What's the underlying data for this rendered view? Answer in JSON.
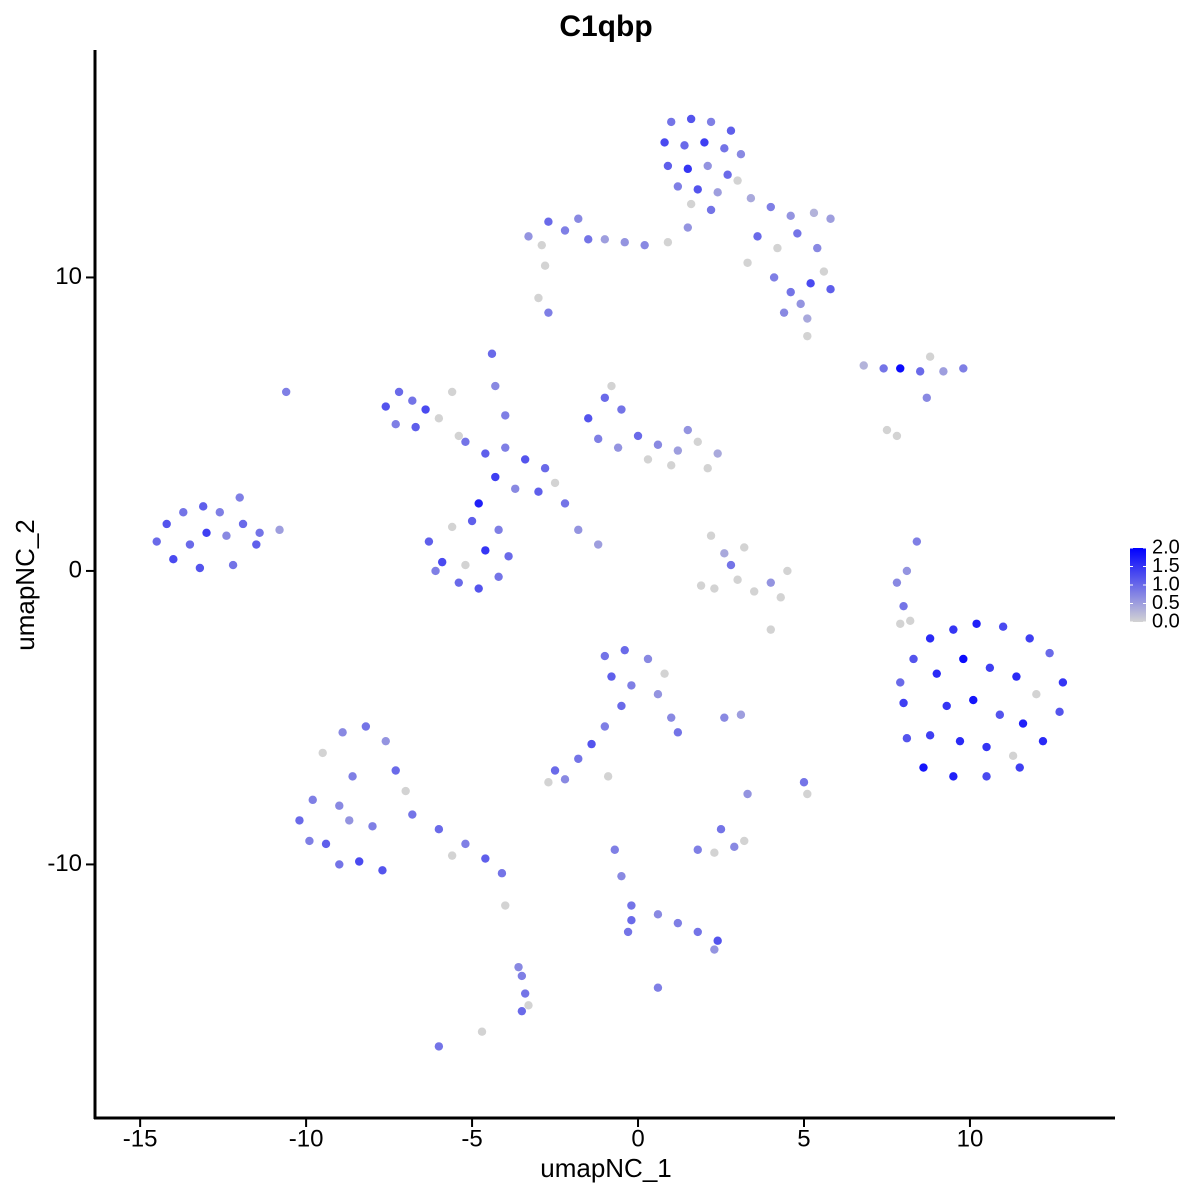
{
  "chart_data": {
    "type": "scatter",
    "title": "C1qbp",
    "x_label": "umapNC_1",
    "y_label": "umapNC_2",
    "xlim": [
      -16.36,
      14.37
    ],
    "ylim": [
      -18.64,
      17.75
    ],
    "xticks": [
      -15,
      -10,
      -5,
      0,
      5,
      10
    ],
    "yticks": [
      -10,
      0,
      10
    ],
    "colors": [
      "#d3d3d3",
      "#0000ff"
    ],
    "color_lim": [
      0,
      2
    ],
    "color_ticks": [
      {
        "value": 0,
        "label": "0.0"
      },
      {
        "value": 0.5,
        "label": "0.5"
      },
      {
        "value": 1,
        "label": "1.0"
      },
      {
        "value": 1.5,
        "label": "1.5"
      },
      {
        "value": 2,
        "label": "2.0"
      }
    ],
    "x": [
      1.0,
      1.6,
      2.2,
      2.8,
      0.8,
      1.4,
      2.0,
      2.6,
      3.1,
      0.9,
      1.5,
      2.1,
      2.7,
      1.2,
      1.8,
      2.4,
      3.0,
      1.6,
      2.2,
      3.4,
      4.0,
      4.6,
      5.3,
      5.8,
      3.6,
      4.2,
      4.8,
      5.4,
      4.1,
      4.6,
      5.2,
      5.8,
      5.6,
      4.9,
      4.4,
      5.1,
      3.3,
      5.1,
      -3.3,
      -2.7,
      -2.2,
      -1.8,
      -2.9,
      -1.5,
      -1.0,
      -0.4,
      0.2,
      0.9,
      1.5,
      -2.8,
      -2.7,
      -3.0,
      6.8,
      7.4,
      7.9,
      8.5,
      9.2,
      9.8,
      8.8,
      8.7,
      7.5,
      7.8,
      -7.6,
      -7.2,
      -6.8,
      -6.4,
      -7.3,
      -6.7,
      -6.0,
      -5.6,
      -5.2,
      -4.6,
      -4.0,
      -3.4,
      -2.8,
      -4.3,
      -3.7,
      -3.0,
      -2.5,
      -4.8,
      -4.4,
      -4.3,
      -4.0,
      -2.2,
      -1.8,
      -1.2,
      -5.4,
      -1.5,
      -1.0,
      -0.5,
      -1.2,
      -0.6,
      0.0,
      0.6,
      1.2,
      1.8,
      2.4,
      0.3,
      1.0,
      2.1,
      -0.8,
      1.5,
      -6.3,
      -5.9,
      -5.4,
      -4.8,
      -4.2,
      -3.9,
      -4.2,
      -5.0,
      -5.6,
      -4.6,
      -5.2,
      -6.1,
      -14.5,
      -14.2,
      -13.7,
      -13.1,
      -12.6,
      -14.0,
      -13.5,
      -13.0,
      -12.4,
      -11.9,
      -11.4,
      -10.8,
      -12.0,
      -13.2,
      -12.2,
      -11.5,
      -10.6,
      2.2,
      2.6,
      3.0,
      2.3,
      3.5,
      4.0,
      4.5,
      2.8,
      3.2,
      1.9,
      4.3,
      4.0,
      8.0,
      8.3,
      8.8,
      9.5,
      10.2,
      11.0,
      11.8,
      12.4,
      12.8,
      12.7,
      12.2,
      11.5,
      10.5,
      9.5,
      8.6,
      8.1,
      9.0,
      9.8,
      10.6,
      11.4,
      12.0,
      9.3,
      10.1,
      10.9,
      11.6,
      8.8,
      9.7,
      10.5,
      11.3,
      7.9,
      8.2,
      -10.2,
      -9.8,
      -9.4,
      -9.0,
      -8.6,
      -9.5,
      -8.9,
      -8.2,
      -7.6,
      -7.3,
      -8.0,
      -8.4,
      -7.7,
      -9.0,
      -6.8,
      -6.0,
      -5.2,
      -4.6,
      -4.1,
      -5.6,
      -7.0,
      -8.7,
      -9.9,
      -1.0,
      -0.4,
      0.3,
      0.8,
      -0.8,
      -0.2,
      0.6,
      1.0,
      1.2,
      -0.5,
      -1.0,
      -1.4,
      -1.8,
      -2.5,
      -2.2,
      -2.7,
      2.6,
      3.1,
      -0.9,
      1.8,
      2.3,
      2.9,
      2.5,
      3.2,
      3.3,
      5.0,
      5.1,
      -0.7,
      -0.5,
      -0.2,
      -0.2,
      0.6,
      1.2,
      1.8,
      2.4,
      2.3,
      -0.3,
      -3.5,
      -3.4,
      -3.5,
      -3.3,
      -3.6,
      0.6,
      -6.0,
      -4.7,
      -4.0,
      8.4,
      8.1,
      7.8,
      8.0,
      7.9
    ],
    "y": [
      15.3,
      15.4,
      15.3,
      15.0,
      14.6,
      14.5,
      14.6,
      14.4,
      14.2,
      13.8,
      13.7,
      13.8,
      13.5,
      13.1,
      13.0,
      12.9,
      13.3,
      12.5,
      12.3,
      12.7,
      12.4,
      12.1,
      12.2,
      12.0,
      11.4,
      11.0,
      11.5,
      11.0,
      10.0,
      9.5,
      9.8,
      9.6,
      10.2,
      9.1,
      8.8,
      8.6,
      10.5,
      8.0,
      11.4,
      11.9,
      11.6,
      12.0,
      11.1,
      11.3,
      11.3,
      11.2,
      11.1,
      11.2,
      11.7,
      10.4,
      8.8,
      9.3,
      7.0,
      6.9,
      6.9,
      6.8,
      6.8,
      6.9,
      7.3,
      5.9,
      4.8,
      4.6,
      5.6,
      6.1,
      5.8,
      5.5,
      5.0,
      4.9,
      5.2,
      6.1,
      4.4,
      4.0,
      4.2,
      3.8,
      3.5,
      3.2,
      2.8,
      2.7,
      3.0,
      2.3,
      7.4,
      6.3,
      5.3,
      2.3,
      1.4,
      0.9,
      4.6,
      5.2,
      5.9,
      5.5,
      4.5,
      4.2,
      4.6,
      4.3,
      4.1,
      4.4,
      4.0,
      3.8,
      3.6,
      3.5,
      6.3,
      4.8,
      1.0,
      0.3,
      -0.4,
      -0.6,
      -0.2,
      0.5,
      1.4,
      1.7,
      1.5,
      0.7,
      0.2,
      0.0,
      1.0,
      1.6,
      2.0,
      2.2,
      2.0,
      0.4,
      0.9,
      1.3,
      1.2,
      1.6,
      1.3,
      1.4,
      2.5,
      0.1,
      0.2,
      0.9,
      6.1,
      1.2,
      0.6,
      -0.3,
      -0.6,
      -0.7,
      -0.4,
      0.0,
      0.2,
      0.8,
      -0.5,
      -0.9,
      -2.0,
      -4.5,
      -3.0,
      -2.3,
      -2.0,
      -1.8,
      -1.9,
      -2.3,
      -2.8,
      -3.8,
      -4.8,
      -5.8,
      -6.7,
      -7.0,
      -7.0,
      -6.7,
      -5.7,
      -3.5,
      -3.0,
      -3.3,
      -3.6,
      -4.2,
      -4.6,
      -4.4,
      -4.9,
      -5.2,
      -5.6,
      -5.8,
      -6.0,
      -6.3,
      -3.8,
      -1.7,
      -8.5,
      -7.8,
      -9.3,
      -8.0,
      -7.0,
      -6.2,
      -5.5,
      -5.3,
      -5.8,
      -6.8,
      -8.7,
      -9.9,
      -10.2,
      -10.0,
      -8.3,
      -8.8,
      -9.3,
      -9.8,
      -10.3,
      -9.7,
      -7.5,
      -8.5,
      -9.2,
      -2.9,
      -2.7,
      -3.0,
      -3.5,
      -3.6,
      -3.9,
      -4.2,
      -5.0,
      -5.5,
      -4.6,
      -5.3,
      -5.9,
      -6.4,
      -6.8,
      -7.1,
      -7.2,
      -5.0,
      -4.9,
      -7.0,
      -9.5,
      -9.6,
      -9.4,
      -8.8,
      -9.2,
      -7.6,
      -7.2,
      -7.6,
      -9.5,
      -10.4,
      -11.4,
      -11.9,
      -11.7,
      -12.0,
      -12.3,
      -12.6,
      -12.9,
      -12.3,
      -13.8,
      -14.4,
      -15.0,
      -14.8,
      -13.5,
      -14.2,
      -16.2,
      -15.7,
      -11.4,
      1.0,
      0.0,
      -0.4,
      -1.2,
      -1.8
    ],
    "expression": [
      0.9,
      1.2,
      0.8,
      1.1,
      1.3,
      1.0,
      1.4,
      0.9,
      0.7,
      1.1,
      1.5,
      0.6,
      1.0,
      0.8,
      1.2,
      0.5,
      0,
      0,
      0.9,
      0.4,
      0.8,
      0.6,
      0.3,
      0.5,
      1.0,
      0,
      0.9,
      0.7,
      0.8,
      0.9,
      1.3,
      1.1,
      0,
      0.6,
      0.7,
      0.4,
      0,
      0,
      0.6,
      1.0,
      0.8,
      0.7,
      0,
      0.9,
      0.5,
      0.6,
      0.7,
      0,
      0.6,
      0,
      0.8,
      0,
      0.3,
      0.9,
      1.9,
      1.0,
      0.5,
      0.8,
      0,
      0.7,
      0,
      0,
      1.2,
      1.0,
      0.9,
      1.3,
      0.8,
      1.1,
      0,
      0,
      0.9,
      1.1,
      0.8,
      1.2,
      1.0,
      1.4,
      0.7,
      1.1,
      0,
      1.7,
      1.0,
      0.7,
      0.8,
      0.9,
      0.6,
      0.5,
      0,
      1.2,
      1.0,
      0.9,
      0.8,
      0.6,
      1.0,
      0.7,
      0.5,
      0,
      0.4,
      0,
      0,
      0,
      0,
      0.6,
      1.1,
      1.3,
      1.0,
      1.2,
      0.9,
      1.0,
      0.8,
      1.1,
      0,
      1.5,
      0,
      0.8,
      1.0,
      1.2,
      0.9,
      1.1,
      0.8,
      1.3,
      1.0,
      1.4,
      0.7,
      1.0,
      0.9,
      0.5,
      0.8,
      1.2,
      0.9,
      1.1,
      0.8,
      0,
      0.4,
      0,
      0,
      0,
      0.6,
      0,
      0.9,
      0,
      0,
      0,
      0,
      1.4,
      1.2,
      1.6,
      1.5,
      1.7,
      1.3,
      1.4,
      1.0,
      1.5,
      1.2,
      1.6,
      1.4,
      1.3,
      1.7,
      1.8,
      1.2,
      1.6,
      1.9,
      1.4,
      1.6,
      0,
      1.5,
      1.8,
      1.2,
      1.7,
      1.4,
      1.6,
      1.5,
      0,
      1.0,
      0,
      1.0,
      0.8,
      1.1,
      0.7,
      0.8,
      0,
      0.7,
      0.9,
      0.6,
      1.0,
      0.8,
      1.3,
      1.2,
      0.9,
      0.9,
      1.0,
      0.8,
      1.1,
      0.9,
      0,
      0,
      0.6,
      0.8,
      0.9,
      1.0,
      0.7,
      0,
      1.1,
      0.8,
      0.6,
      0.7,
      0.9,
      1.0,
      0.8,
      1.2,
      0.9,
      1.0,
      0.7,
      0,
      0.7,
      0.5,
      0,
      0.8,
      0,
      0.7,
      0.9,
      0,
      0.6,
      0.9,
      0,
      0.8,
      0.7,
      0.9,
      1.0,
      0.7,
      0.8,
      0.9,
      1.2,
      0.6,
      0.9,
      0.8,
      0.9,
      1.0,
      0,
      0.7,
      0.8,
      0.9,
      0,
      0,
      0.8,
      0.6,
      0.7,
      0.9,
      0
    ]
  }
}
